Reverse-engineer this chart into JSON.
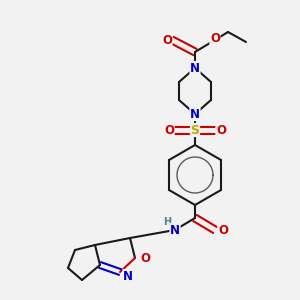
{
  "bg_color": "#f2f2f2",
  "atom_colors": {
    "C": "#1a1a1a",
    "N": "#0000cc",
    "O": "#cc0000",
    "S": "#bbaa00",
    "H": "#448888"
  },
  "bond_color": "#1a1a1a",
  "bond_width": 1.5
}
